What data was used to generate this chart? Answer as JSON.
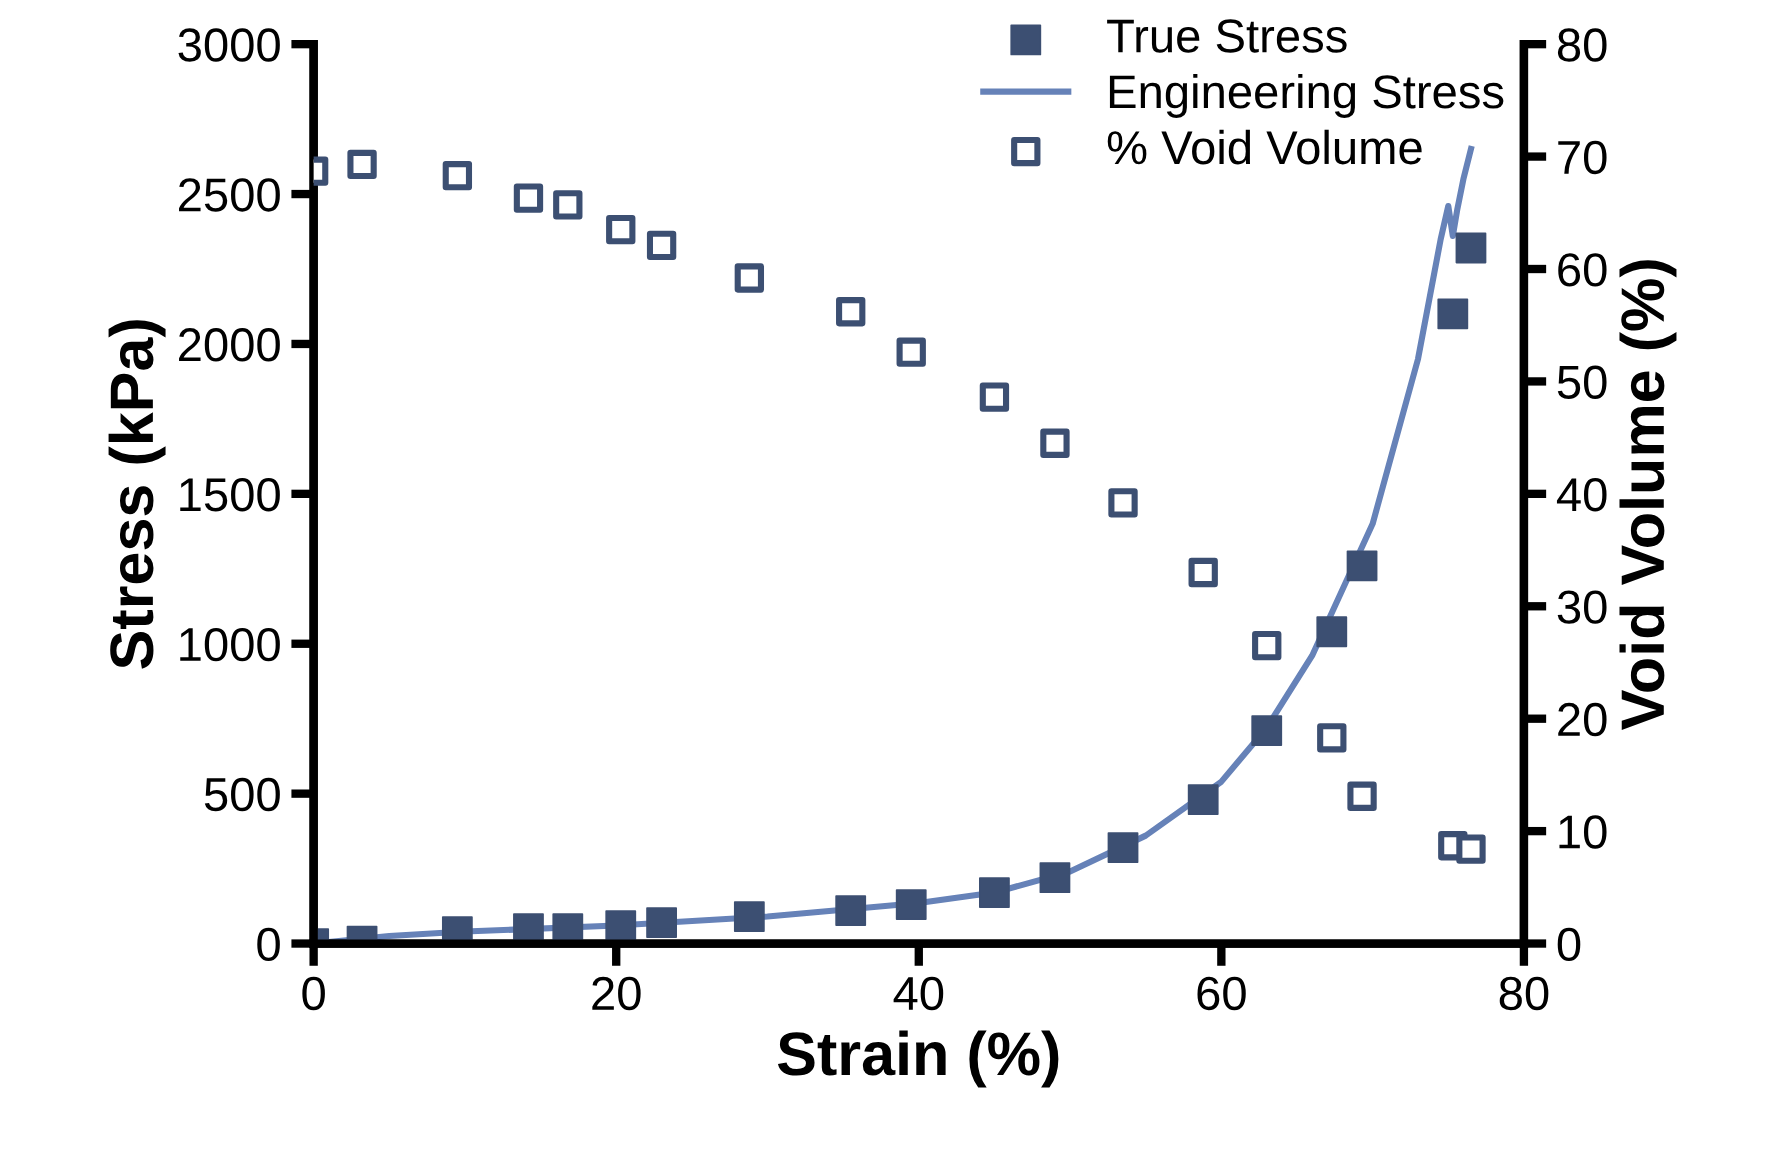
{
  "chart_data": {
    "type": "scatter",
    "xlabel": "Strain (%)",
    "ylabel": "Stress (kPa)",
    "y2label": "Void Volume (%)",
    "xlim": [
      0,
      80
    ],
    "xticks": [
      0,
      20,
      40,
      60,
      80
    ],
    "ylim": [
      0,
      3000
    ],
    "yticks": [
      0,
      500,
      1000,
      1500,
      2000,
      2500,
      3000
    ],
    "y2lim": [
      0,
      80
    ],
    "y2ticks": [
      0,
      10,
      20,
      30,
      40,
      50,
      60,
      70,
      80
    ],
    "legend": "top right",
    "grid": false,
    "series": [
      {
        "name": "True Stress",
        "marker": "square",
        "color": "#3c4f72",
        "x": [
          0,
          3.2,
          9.5,
          14.2,
          16.8,
          20.3,
          23,
          28.8,
          35.5,
          39.5,
          45,
          49,
          53.5,
          58.8,
          63,
          67.3,
          69.3,
          75.3,
          76.5
        ],
        "values": [
          0,
          8,
          40,
          50,
          50,
          60,
          70,
          90,
          110,
          130,
          170,
          220,
          320,
          480,
          710,
          1040,
          1260,
          2100,
          2320
        ]
      },
      {
        "name": "Engineering Stress",
        "type": "line",
        "marker": "none",
        "line_style": "solid",
        "color": "#6682b8",
        "x": [
          0,
          5,
          10,
          20,
          30,
          40,
          45,
          50,
          55,
          60,
          63,
          66,
          70,
          73,
          74.5,
          75,
          75.3,
          75.6,
          76,
          76.5
        ],
        "values": [
          0,
          25,
          40,
          60,
          90,
          135,
          170,
          240,
          360,
          540,
          720,
          960,
          1400,
          1950,
          2350,
          2460,
          2360,
          2450,
          2550,
          2650
        ]
      },
      {
        "name": "% Void Volume",
        "marker": "square",
        "axis": "y2",
        "color": "#3c4f72",
        "x": [
          0,
          3.2,
          9.5,
          14.2,
          16.8,
          20.3,
          23,
          28.8,
          35.5,
          39.5,
          45,
          49,
          53.5,
          58.8,
          63,
          67.3,
          69.3,
          75.3,
          76.5
        ],
        "values": [
          68.7,
          69.3,
          68.3,
          66.3,
          65.7,
          63.5,
          62.1,
          59.2,
          56.2,
          52.6,
          48.6,
          44.5,
          39.2,
          33,
          26.5,
          18.3,
          13.1,
          8.7,
          8.4
        ]
      }
    ]
  }
}
